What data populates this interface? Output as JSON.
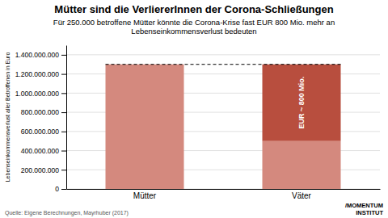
{
  "chart_data": {
    "type": "bar",
    "stacked": true,
    "title": "Mütter sind die VerliererInnen der Corona-Schließungen",
    "subtitle": "Für 250.000 betroffene Mütter könnte die Corona-Krise fast EUR 800 Mio. mehr an\nLebenseinkommensverlust bedeuten",
    "categories": [
      "Mütter",
      "Väter"
    ],
    "series": [
      {
        "color": "#d4897e",
        "values": [
          1300000000,
          500000000
        ]
      },
      {
        "color": "#b84e3e",
        "values": [
          null,
          800000000
        ]
      }
    ],
    "reference_line": 1300000000,
    "annotation": "EUR ~ 800 Mio.",
    "ylabel": "Lebenseinkommensverlust aller Betroffenen in Euro",
    "ylim": [
      0,
      1500000000
    ],
    "yticks": [
      0,
      {
        "value": 200000000,
        "label": "200.000.000"
      },
      {
        "value": 400000000,
        "label": "400.000.000"
      },
      {
        "value": 600000000,
        "label": "600.000.000"
      },
      {
        "value": 800000000,
        "label": "800.000.000"
      },
      {
        "value": 1000000000,
        "label": "1.000.000.000"
      },
      {
        "value": 1200000000,
        "label": "1.200.000.000"
      },
      {
        "value": 1400000000,
        "label": "1.400.000.000"
      }
    ],
    "grid": true,
    "source": "Quelle: Eigene Berechnungen, Mayrhuber (2017)",
    "logo": [
      "/MOMENTUM",
      "INSTITUT"
    ]
  }
}
